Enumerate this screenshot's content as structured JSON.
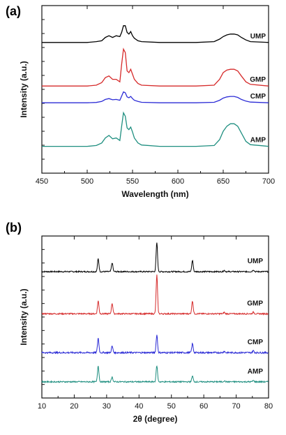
{
  "chart_data": [
    {
      "panel": "(a)",
      "type": "line",
      "xlabel": "Wavelength (nm)",
      "ylabel": "Intensity (a.u.)",
      "xlim": [
        450,
        700
      ],
      "xticks": [
        450,
        500,
        550,
        600,
        650,
        700
      ],
      "y_scale": "stacked, no numeric ticks",
      "series": [
        {
          "name": "UMP",
          "color": "#000000",
          "baseline": 0.78,
          "x": [
            450,
            500,
            510,
            516,
            520,
            524,
            528,
            532,
            536,
            538,
            540,
            542,
            544,
            546,
            548,
            550,
            552,
            556,
            560,
            580,
            600,
            620,
            640,
            646,
            650,
            654,
            658,
            662,
            666,
            670,
            675,
            680,
            700
          ],
          "y": [
            0.78,
            0.78,
            0.785,
            0.79,
            0.81,
            0.82,
            0.81,
            0.82,
            0.815,
            0.84,
            0.88,
            0.88,
            0.84,
            0.83,
            0.845,
            0.82,
            0.805,
            0.79,
            0.785,
            0.78,
            0.78,
            0.78,
            0.785,
            0.8,
            0.815,
            0.825,
            0.83,
            0.83,
            0.825,
            0.81,
            0.795,
            0.785,
            0.78
          ]
        },
        {
          "name": "GMP",
          "color": "#d62b2b",
          "baseline": 0.52,
          "x": [
            450,
            500,
            510,
            516,
            520,
            524,
            528,
            532,
            536,
            538,
            540,
            542,
            544,
            546,
            548,
            550,
            552,
            556,
            560,
            580,
            600,
            620,
            640,
            646,
            650,
            654,
            658,
            662,
            666,
            670,
            675,
            680,
            700
          ],
          "y": [
            0.52,
            0.52,
            0.525,
            0.54,
            0.57,
            0.58,
            0.56,
            0.56,
            0.545,
            0.65,
            0.74,
            0.72,
            0.61,
            0.6,
            0.62,
            0.59,
            0.56,
            0.535,
            0.525,
            0.52,
            0.52,
            0.52,
            0.525,
            0.56,
            0.6,
            0.615,
            0.62,
            0.62,
            0.61,
            0.58,
            0.545,
            0.53,
            0.52
          ]
        },
        {
          "name": "CMP",
          "color": "#2b2bd6",
          "baseline": 0.42,
          "x": [
            450,
            500,
            510,
            516,
            520,
            524,
            528,
            532,
            536,
            538,
            540,
            542,
            544,
            546,
            548,
            550,
            552,
            556,
            560,
            580,
            600,
            620,
            640,
            646,
            650,
            654,
            658,
            662,
            666,
            670,
            675,
            680,
            700
          ],
          "y": [
            0.42,
            0.42,
            0.422,
            0.428,
            0.44,
            0.445,
            0.438,
            0.44,
            0.435,
            0.46,
            0.485,
            0.48,
            0.455,
            0.45,
            0.458,
            0.445,
            0.435,
            0.428,
            0.423,
            0.42,
            0.42,
            0.42,
            0.423,
            0.435,
            0.448,
            0.455,
            0.458,
            0.458,
            0.452,
            0.44,
            0.43,
            0.424,
            0.42
          ]
        },
        {
          "name": "AMP",
          "color": "#1f8f80",
          "baseline": 0.16,
          "x": [
            450,
            500,
            510,
            516,
            520,
            524,
            528,
            532,
            536,
            538,
            540,
            542,
            544,
            546,
            548,
            550,
            552,
            556,
            560,
            580,
            600,
            620,
            640,
            646,
            650,
            654,
            658,
            662,
            666,
            670,
            675,
            680,
            700
          ],
          "y": [
            0.16,
            0.16,
            0.165,
            0.18,
            0.21,
            0.225,
            0.205,
            0.21,
            0.195,
            0.28,
            0.36,
            0.34,
            0.27,
            0.26,
            0.275,
            0.245,
            0.21,
            0.18,
            0.168,
            0.16,
            0.16,
            0.16,
            0.165,
            0.2,
            0.25,
            0.28,
            0.295,
            0.295,
            0.28,
            0.24,
            0.19,
            0.17,
            0.16
          ]
        }
      ]
    },
    {
      "panel": "(b)",
      "type": "line",
      "xlabel": "2θ (degree)",
      "ylabel": "Intensity (a.u.)",
      "xlim": [
        10,
        80
      ],
      "xticks": [
        10,
        20,
        30,
        40,
        50,
        60,
        70,
        80
      ],
      "y_scale": "stacked, no numeric ticks",
      "peaks_deg": [
        27.4,
        31.7,
        45.5,
        56.5,
        66.3,
        75.3
      ],
      "series": [
        {
          "name": "UMP",
          "color": "#000000",
          "baseline": 0.78,
          "peak_heights": [
            0.08,
            0.055,
            0.18,
            0.07,
            0.008,
            0.012
          ],
          "noise": 0.004
        },
        {
          "name": "GMP",
          "color": "#d62b2b",
          "baseline": 0.52,
          "peak_heights": [
            0.08,
            0.065,
            0.24,
            0.08,
            0.008,
            0.01
          ],
          "noise": 0.004
        },
        {
          "name": "CMP",
          "color": "#2b2bd6",
          "baseline": 0.28,
          "peak_heights": [
            0.09,
            0.04,
            0.11,
            0.055,
            0.008,
            0.012
          ],
          "noise": 0.005
        },
        {
          "name": "AMP",
          "color": "#1f8f80",
          "baseline": 0.1,
          "peak_heights": [
            0.1,
            0.03,
            0.1,
            0.035,
            0.006,
            0.008
          ],
          "noise": 0.004
        }
      ]
    }
  ]
}
